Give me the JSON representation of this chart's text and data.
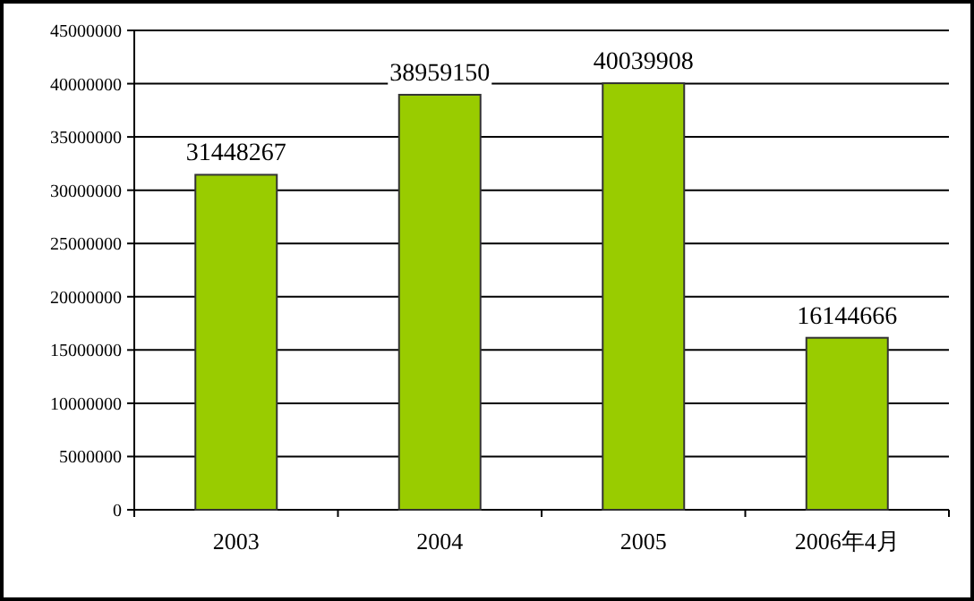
{
  "chart_data": {
    "type": "bar",
    "categories": [
      "2003",
      "2004",
      "2005",
      "2006年4月"
    ],
    "values": [
      31448267,
      38959150,
      40039908,
      16144666
    ],
    "color": "#99cc00",
    "ylim": [
      0,
      45000000
    ],
    "yticks": [
      0,
      5000000,
      10000000,
      15000000,
      20000000,
      25000000,
      30000000,
      35000000,
      40000000,
      45000000
    ],
    "grid": "y",
    "data_labels": true
  }
}
